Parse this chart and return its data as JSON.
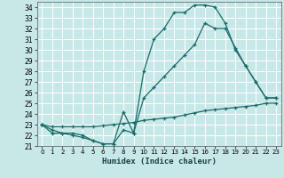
{
  "title": "Humidex (Indice chaleur)",
  "bg_color": "#c8e8e8",
  "grid_color": "#a0d0d0",
  "line_color": "#1a6b6b",
  "xlim": [
    -0.5,
    23.5
  ],
  "ylim": [
    21,
    34.5
  ],
  "xticks": [
    0,
    1,
    2,
    3,
    4,
    5,
    6,
    7,
    8,
    9,
    10,
    11,
    12,
    13,
    14,
    15,
    16,
    17,
    18,
    19,
    20,
    21,
    22,
    23
  ],
  "yticks": [
    21,
    22,
    23,
    24,
    25,
    26,
    27,
    28,
    29,
    30,
    31,
    32,
    33,
    34
  ],
  "line1_x": [
    0,
    1,
    2,
    3,
    4,
    5,
    6,
    7,
    8,
    9,
    10,
    11,
    12,
    13,
    14,
    15,
    16,
    17,
    18,
    19,
    20,
    21,
    22,
    23
  ],
  "line1_y": [
    23,
    22.2,
    22.2,
    22.2,
    22.0,
    21.5,
    21.2,
    21.2,
    24.2,
    22.2,
    28,
    31,
    32,
    33.5,
    33.5,
    34.2,
    34.2,
    34.0,
    32.5,
    30,
    28.5,
    27,
    25.5,
    25.5
  ],
  "line2_x": [
    0,
    1,
    2,
    3,
    4,
    5,
    6,
    7,
    8,
    9,
    10,
    11,
    12,
    13,
    14,
    15,
    16,
    17,
    18,
    19,
    20,
    21,
    22,
    23
  ],
  "line2_y": [
    23,
    22.5,
    22.2,
    22.0,
    21.8,
    21.5,
    21.2,
    21.2,
    22.5,
    22.2,
    25.5,
    26.5,
    27.5,
    28.5,
    29.5,
    30.5,
    32.5,
    32.0,
    32.0,
    30.2,
    28.5,
    27.0,
    25.5,
    25.5
  ],
  "line3_x": [
    0,
    1,
    2,
    3,
    4,
    5,
    6,
    7,
    8,
    9,
    10,
    11,
    12,
    13,
    14,
    15,
    16,
    17,
    18,
    19,
    20,
    21,
    22,
    23
  ],
  "line3_y": [
    23,
    22.8,
    22.8,
    22.8,
    22.8,
    22.8,
    22.9,
    23.0,
    23.1,
    23.2,
    23.4,
    23.5,
    23.6,
    23.7,
    23.9,
    24.1,
    24.3,
    24.4,
    24.5,
    24.6,
    24.7,
    24.8,
    25.0,
    25.0
  ]
}
